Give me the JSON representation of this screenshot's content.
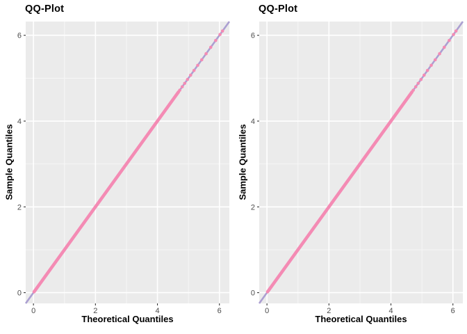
{
  "colors": {
    "page_bg": "#ffffff",
    "panel_bg": "#ebebeb",
    "grid_major": "#ffffff",
    "grid_minor": "#f7f7f7",
    "reference_line": "#ab9fd1",
    "points": "#f48bb4",
    "tick_label": "#4d4d4d",
    "tick_mark": "#333333",
    "title_text": "#000000"
  },
  "chart_data": [
    {
      "type": "scatter",
      "title": "QQ-Plot",
      "xlabel": "Theoretical Quantiles",
      "ylabel": "Sample Quantiles",
      "xlim": [
        -0.25,
        6.32
      ],
      "ylim": [
        -0.25,
        6.32
      ],
      "ticks": [
        0,
        2,
        4,
        6
      ],
      "minor_ticks": [
        1,
        3,
        5
      ],
      "grid": true,
      "legend": "none",
      "identity_line": {
        "from": -0.25,
        "to": 6.32,
        "color": "#ab9fd1"
      },
      "points_on_identity": {
        "dense_from": 0.02,
        "dense_to": 4.68,
        "tail": [
          4.72,
          4.8,
          4.88,
          4.97,
          5.07,
          5.18,
          5.3,
          5.43,
          5.57,
          5.72,
          5.88,
          6.02,
          6.1
        ],
        "color": "#f48bb4"
      }
    },
    {
      "type": "scatter",
      "title": "QQ-Plot",
      "xlabel": "Theoretical Quantiles",
      "ylabel": "Sample Quantiles",
      "xlim": [
        -0.25,
        6.32
      ],
      "ylim": [
        -0.25,
        6.32
      ],
      "ticks": [
        0,
        2,
        4,
        6
      ],
      "minor_ticks": [
        1,
        3,
        5
      ],
      "grid": true,
      "legend": "none",
      "identity_line": {
        "from": -0.25,
        "to": 6.32,
        "color": "#ab9fd1"
      },
      "points_on_identity": {
        "dense_from": 0.02,
        "dense_to": 4.68,
        "tail": [
          4.72,
          4.8,
          4.88,
          4.97,
          5.07,
          5.18,
          5.3,
          5.43,
          5.57,
          5.72,
          5.88,
          6.02,
          6.1
        ],
        "color": "#f48bb4"
      }
    }
  ]
}
